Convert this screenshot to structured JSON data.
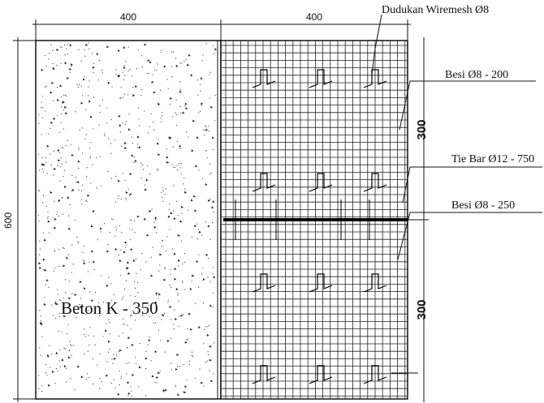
{
  "dimensions": {
    "top_left": "400",
    "top_right": "400",
    "left": "600",
    "right_top": "300",
    "right_bottom": "300"
  },
  "labels": {
    "dudukan": "Dudukan Wiremesh Ø8",
    "besi_200": "Besi Ø8 - 200",
    "tie_bar": "Tie Bar Ø12 - 750",
    "besi_250": "Besi Ø8 - 250",
    "beton": "Beton K - 350"
  }
}
